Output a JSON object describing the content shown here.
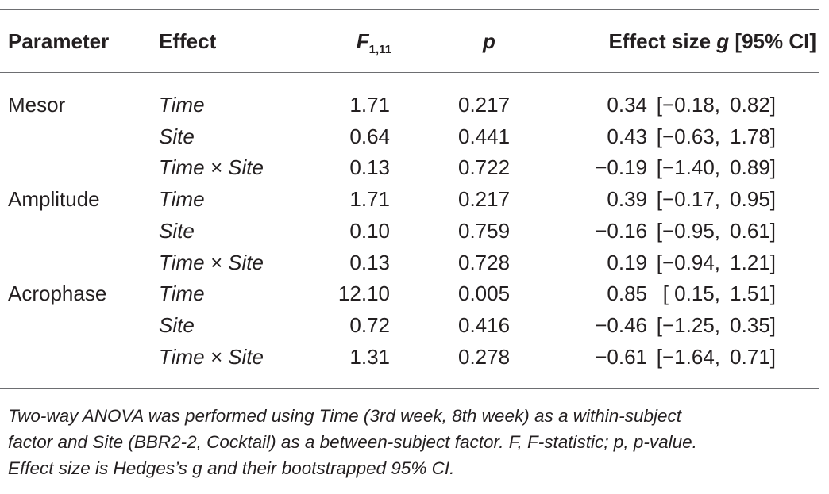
{
  "header": {
    "parameter": "Parameter",
    "effect": "Effect",
    "f_letter": "F",
    "f_subscript": "1,11",
    "p": "p",
    "effect_size_prefix": "Effect size ",
    "effect_size_g": "g",
    "effect_size_suffix": " [95% CI]"
  },
  "rows": [
    {
      "parameter": "Mesor",
      "effect": "Time",
      "f": "1.71",
      "p": "0.217",
      "g": "0.34",
      "ci_low": "[−0.18,",
      "ci_high": "0.82]"
    },
    {
      "parameter": "",
      "effect": "Site",
      "f": "0.64",
      "p": "0.441",
      "g": "0.43",
      "ci_low": "[−0.63,",
      "ci_high": "1.78]"
    },
    {
      "parameter": "",
      "effect": "Time × Site",
      "f": "0.13",
      "p": "0.722",
      "g": "−0.19",
      "ci_low": "[−1.40,",
      "ci_high": "0.89]"
    },
    {
      "parameter": "Amplitude",
      "effect": "Time",
      "f": "1.71",
      "p": "0.217",
      "g": "0.39",
      "ci_low": "[−0.17,",
      "ci_high": "0.95]"
    },
    {
      "parameter": "",
      "effect": "Site",
      "f": "0.10",
      "p": "0.759",
      "g": "−0.16",
      "ci_low": "[−0.95,",
      "ci_high": "0.61]"
    },
    {
      "parameter": "",
      "effect": "Time × Site",
      "f": "0.13",
      "p": "0.728",
      "g": "0.19",
      "ci_low": "[−0.94,",
      "ci_high": "1.21]"
    },
    {
      "parameter": "Acrophase",
      "effect": "Time",
      "f": "12.10",
      "p": "0.005",
      "g": "0.85",
      "ci_low": "[ 0.15,",
      "ci_high": "1.51]"
    },
    {
      "parameter": "",
      "effect": "Site",
      "f": "0.72",
      "p": "0.416",
      "g": "−0.46",
      "ci_low": "[−1.25,",
      "ci_high": "0.35]"
    },
    {
      "parameter": "",
      "effect": "Time × Site",
      "f": "1.31",
      "p": "0.278",
      "g": "−0.61",
      "ci_low": "[−1.64,",
      "ci_high": "0.71]"
    }
  ],
  "footnote": {
    "line1": "Two-way ANOVA was performed using Time (3rd week, 8th week) as a within-subject",
    "line2": "factor and Site (BBR2-2, Cocktail) as a between-subject factor. F, F-statistic; p, p-value.",
    "line3": "Effect size is Hedges’s g and their bootstrapped 95% CI."
  }
}
